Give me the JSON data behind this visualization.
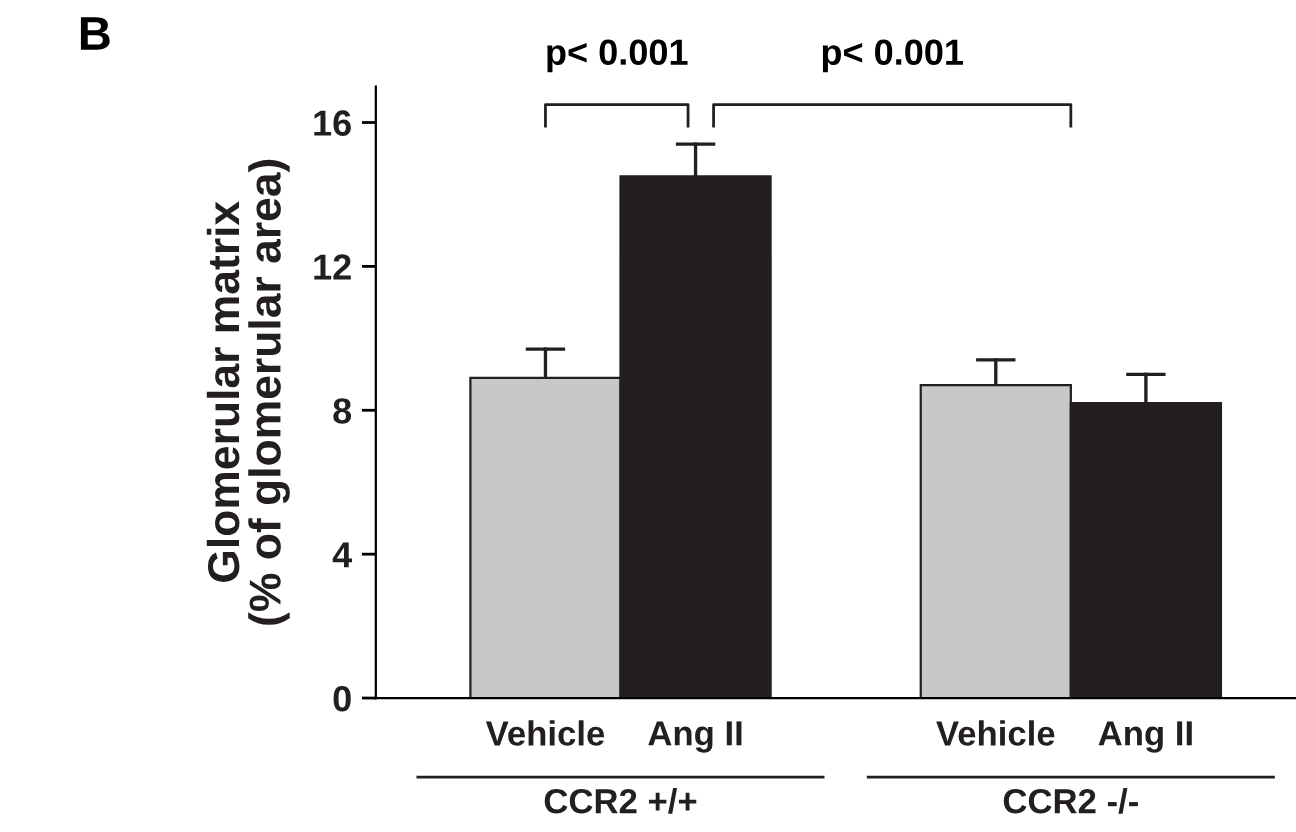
{
  "chart_data": {
    "type": "bar",
    "ylabel": "Glomerular matrix\n(% of glomerular area)",
    "categories": [
      "Vehicle",
      "Ang II",
      "Vehicle",
      "Ang II"
    ],
    "values": [
      8.9,
      14.5,
      8.7,
      8.2
    ],
    "colors": [
      "#c8c8c8",
      "#231f20",
      "#c8c8c8",
      "#231f20"
    ],
    "errors": [
      [
        8.9,
        9.7
      ],
      [
        14.5,
        15.4
      ],
      [
        8.7,
        9.4
      ],
      [
        8.2,
        9.0
      ]
    ],
    "ylim": [
      0,
      17
    ],
    "yticks": [
      0,
      4,
      8,
      12,
      16
    ],
    "grid": false,
    "legend": false,
    "annotations": [
      "B",
      "p< 0.001",
      "p< 0.001",
      "CCR2 +/+",
      "CCR2 -/-"
    ]
  }
}
